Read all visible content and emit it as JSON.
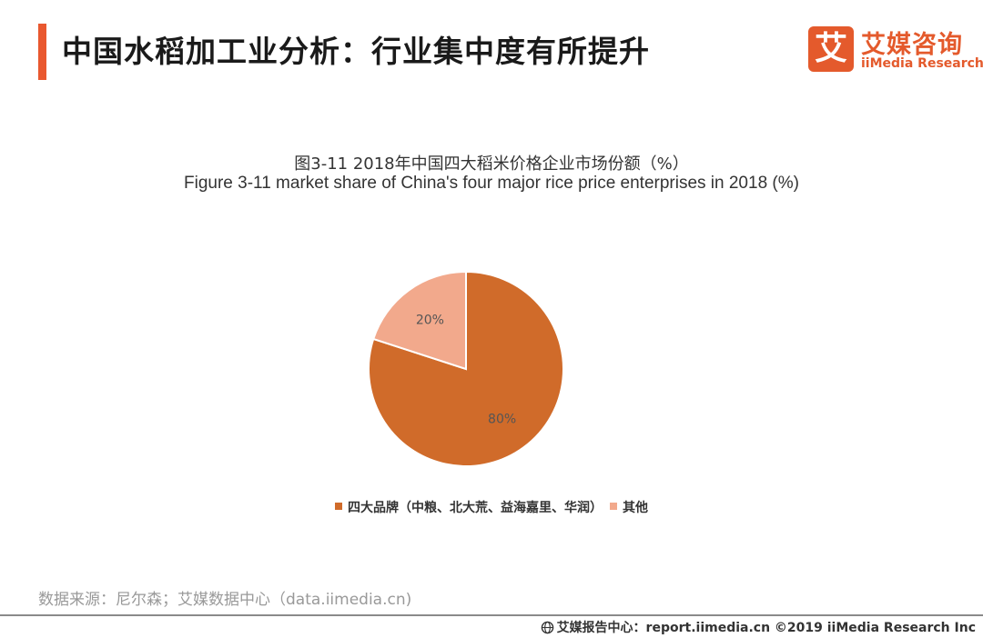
{
  "header": {
    "title": "中国水稻加工业分析：行业集中度有所提升",
    "accent_color": "#e9582f"
  },
  "logo": {
    "mark": "艾",
    "name_cn": "艾媒咨询",
    "name_en": "iiMedia Research",
    "color": "#e45a2c"
  },
  "chart_data": {
    "type": "pie",
    "title": "图3-11 2018年中国四大稻米价格企业市场份额（%）",
    "subtitle": "Figure 3-11 market share of China's four major rice price enterprises in 2018 (%)",
    "categories": [
      "四大品牌（中粮、北大荒、益海嘉里、华润）",
      "其他"
    ],
    "values": [
      80,
      20
    ],
    "labels": [
      "80%",
      "20%"
    ],
    "colors": [
      "#d06b2a",
      "#f2a98c"
    ],
    "start_angle_deg": 0,
    "direction": "clockwise",
    "legend_position": "bottom"
  },
  "footer": {
    "source": "数据来源：尼尔森；艾媒数据中心（data.iimedia.cn)",
    "right_text": "艾媒报告中心：report.iimedia.cn  ©2019  iiMedia Research  Inc"
  }
}
